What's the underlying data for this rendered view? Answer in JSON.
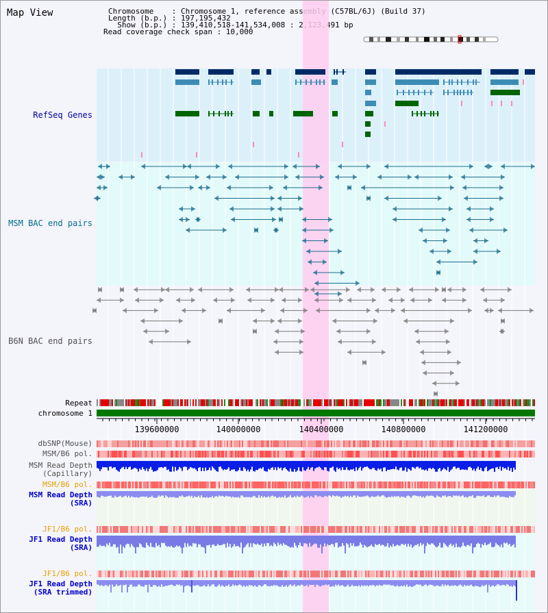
{
  "page": {
    "title": "Map View"
  },
  "info": {
    "chromosome": "Chromosome    : Chromosome 1, reference assembly (C57BL/6J) (Build 37)",
    "length": "Length (b.p.) : 197,195,432",
    "show": "  Show (b.p.) : 139,410,518-141,534,008 : 2,123,491 bp",
    "coverage": "Read coverage check span : 10,000"
  },
  "tracks": {
    "refseq": "RefSeq Genes",
    "msm_bac": "MSM BAC end pairs",
    "b6n_bac": "B6N BAC end pairs",
    "repeat": "Repeat",
    "chromosome": "chromosome 1",
    "dbsnp": "dbSNP(Mouse)",
    "msm_pol_cap": "MSM/B6 pol.",
    "msm_depth_cap_1": "MSM Read Depth",
    "msm_depth_cap_2": "(Capillary)",
    "msm_pol_sra": "MSM/B6 pol.",
    "msm_depth_sra_1": "MSM Read Depth",
    "msm_depth_sra_2": "(SRA)",
    "jf1_pol": "JF1/B6 pol.",
    "jf1_depth_1": "JF1 Read Depth",
    "jf1_depth_2": "(SRA)",
    "jf1_pol_trim": "JF1/B6 pol.",
    "jf1_depth_trim_1": "JF1 Read Depth",
    "jf1_depth_trim_2": "(SRA trimmed)"
  },
  "axis": {
    "ticks": [
      "139600000",
      "140000000",
      "140400000",
      "140800000",
      "141200000"
    ]
  },
  "colors": {
    "refseq_bg": "#dcf0fa",
    "msm_bac_bg": "#e3fafa",
    "highlight": "#ffcdf0",
    "gene_navy": "#002a66",
    "gene_steel": "#3c8cb4",
    "gene_green": "#006400",
    "msm_bac_line": "#1c6b8c",
    "b6n_bac_line": "#787878",
    "label_navy": "#0000a0",
    "label_teal": "#006e8c",
    "label_gray": "#505050",
    "label_orange": "#e6a000",
    "chrom_green": "#007800",
    "depth_blue": "#0a1ee6",
    "depth_sra": "#8c8cf0"
  }
}
